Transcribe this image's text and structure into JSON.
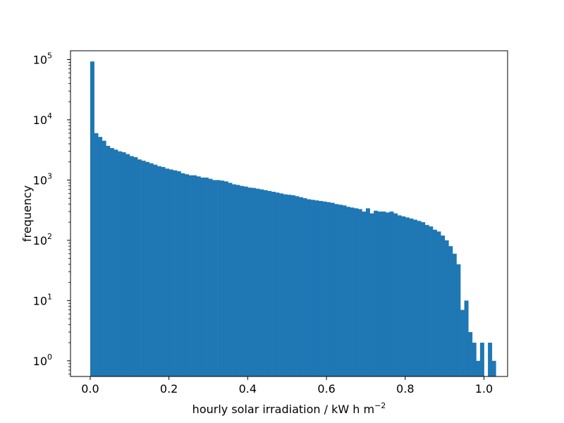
{
  "chart_data": {
    "type": "bar",
    "title": "",
    "xlabel": "hourly solar irradiation / kW h m",
    "xlabel_sup": "−2",
    "ylabel": "frequency",
    "yscale": "log",
    "xlim": [
      -0.05,
      1.06
    ],
    "ylim": [
      0.55,
      140000
    ],
    "grid": false,
    "legend": "none",
    "bar_color": "#1f77b4",
    "bin_width": 0.01,
    "bin_start": 0.0,
    "values": [
      93000,
      6000,
      5200,
      4500,
      3700,
      3400,
      3200,
      3000,
      2900,
      2700,
      2500,
      2400,
      2200,
      2100,
      2000,
      1900,
      1800,
      1700,
      1650,
      1550,
      1500,
      1450,
      1400,
      1300,
      1250,
      1200,
      1200,
      1150,
      1100,
      1100,
      1050,
      1000,
      1000,
      980,
      950,
      900,
      850,
      830,
      800,
      780,
      750,
      740,
      720,
      700,
      680,
      660,
      640,
      620,
      600,
      580,
      570,
      560,
      540,
      520,
      500,
      480,
      470,
      460,
      450,
      440,
      430,
      420,
      400,
      390,
      380,
      360,
      350,
      340,
      330,
      300,
      340,
      280,
      310,
      300,
      300,
      290,
      300,
      280,
      260,
      250,
      240,
      230,
      220,
      210,
      200,
      180,
      170,
      150,
      140,
      120,
      100,
      80,
      60,
      40,
      7,
      10,
      3,
      2,
      1,
      2,
      0,
      2,
      1
    ],
    "x_ticks": [
      "0.0",
      "0.2",
      "0.4",
      "0.6",
      "0.8",
      "1.0"
    ],
    "x_tick_values": [
      0.0,
      0.2,
      0.4,
      0.6,
      0.8,
      1.0
    ],
    "y_ticks": [
      {
        "base": "10",
        "exp": "0",
        "value": 1
      },
      {
        "base": "10",
        "exp": "1",
        "value": 10
      },
      {
        "base": "10",
        "exp": "2",
        "value": 100
      },
      {
        "base": "10",
        "exp": "3",
        "value": 1000
      },
      {
        "base": "10",
        "exp": "4",
        "value": 10000
      },
      {
        "base": "10",
        "exp": "5",
        "value": 100000
      }
    ]
  }
}
